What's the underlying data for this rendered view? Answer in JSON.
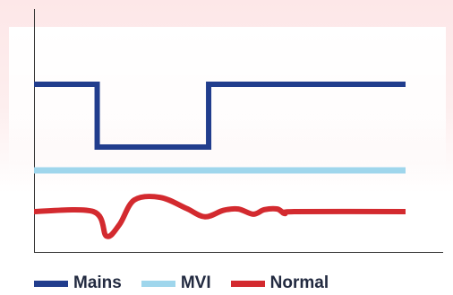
{
  "chart_data": {
    "type": "line",
    "title": "",
    "xlabel": "",
    "ylabel": "",
    "grid": false,
    "legend_position": "bottom-left",
    "series": [
      {
        "name": "Mains",
        "color": "#213d8d",
        "points": [
          [
            0,
            1.0
          ],
          [
            0.17,
            1.0
          ],
          [
            0.17,
            0.0
          ],
          [
            0.47,
            0.0
          ],
          [
            0.47,
            1.0
          ],
          [
            1.0,
            1.0
          ]
        ]
      },
      {
        "name": "MVI",
        "color": "#9fd6ec",
        "points": [
          [
            0,
            0.5
          ],
          [
            1.0,
            0.5
          ]
        ]
      },
      {
        "name": "Normal",
        "color": "#d32a2f",
        "points": [
          [
            0,
            0.0
          ],
          [
            0.16,
            0.0
          ],
          [
            0.195,
            -0.38
          ],
          [
            0.23,
            -0.2
          ],
          [
            0.27,
            0.18
          ],
          [
            0.34,
            0.22
          ],
          [
            0.41,
            0.05
          ],
          [
            0.46,
            -0.08
          ],
          [
            0.51,
            0.02
          ],
          [
            0.55,
            0.04
          ],
          [
            0.59,
            -0.04
          ],
          [
            0.62,
            0.03
          ],
          [
            0.655,
            0.04
          ],
          [
            0.675,
            -0.03
          ],
          [
            0.7,
            0.0
          ],
          [
            1.0,
            0.0
          ]
        ]
      }
    ]
  }
}
